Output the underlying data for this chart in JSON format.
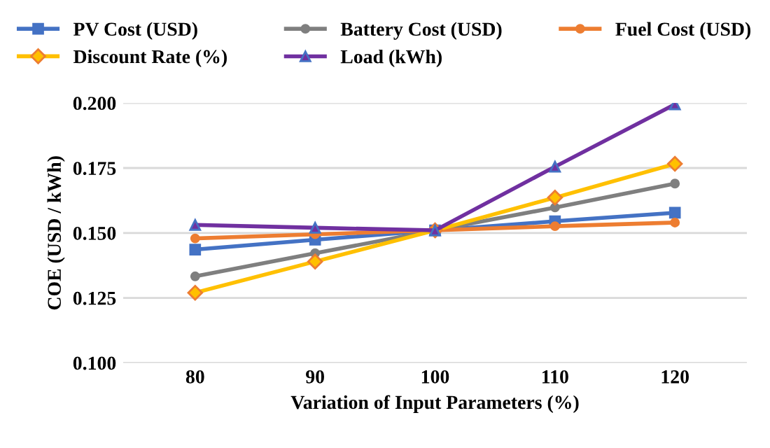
{
  "chart_data": {
    "type": "line",
    "xlabel": "Variation of Input Parameters (%)",
    "ylabel": "COE (USD / kWh)",
    "categories": [
      "80",
      "90",
      "100",
      "110",
      "120"
    ],
    "series": [
      {
        "name": "PV Cost (USD)",
        "color": "#4472c4",
        "marker": "square",
        "values": [
          0.1436,
          0.1474,
          0.151,
          0.1545,
          0.1578
        ]
      },
      {
        "name": "Battery Cost (USD)",
        "color": "#7f7f7f",
        "marker": "circle",
        "values": [
          0.1333,
          0.1422,
          0.151,
          0.1598,
          0.169
        ]
      },
      {
        "name": "Fuel Cost (USD)",
        "color": "#ed7d31",
        "marker": "circle",
        "values": [
          0.1479,
          0.1495,
          0.151,
          0.1526,
          0.154
        ]
      },
      {
        "name": "Discount Rate (%)",
        "color": "#ffc000",
        "marker": "diamond",
        "values": [
          0.127,
          0.139,
          0.151,
          0.1636,
          0.1766
        ]
      },
      {
        "name": "Load (kWh)",
        "color": "#7030a0",
        "marker": "triangle",
        "values": [
          0.1531,
          0.152,
          0.151,
          0.1755,
          0.1995
        ]
      }
    ],
    "ylim": [
      0.1,
      0.2
    ],
    "yticks": [
      {
        "value": 0.1,
        "label": "0.100"
      },
      {
        "value": 0.125,
        "label": "0.125"
      },
      {
        "value": 0.15,
        "label": "0.150"
      },
      {
        "value": 0.175,
        "label": "0.175"
      },
      {
        "value": 0.2,
        "label": "0.200"
      }
    ],
    "grid": "y",
    "legend": "top",
    "line_style": "solid"
  }
}
